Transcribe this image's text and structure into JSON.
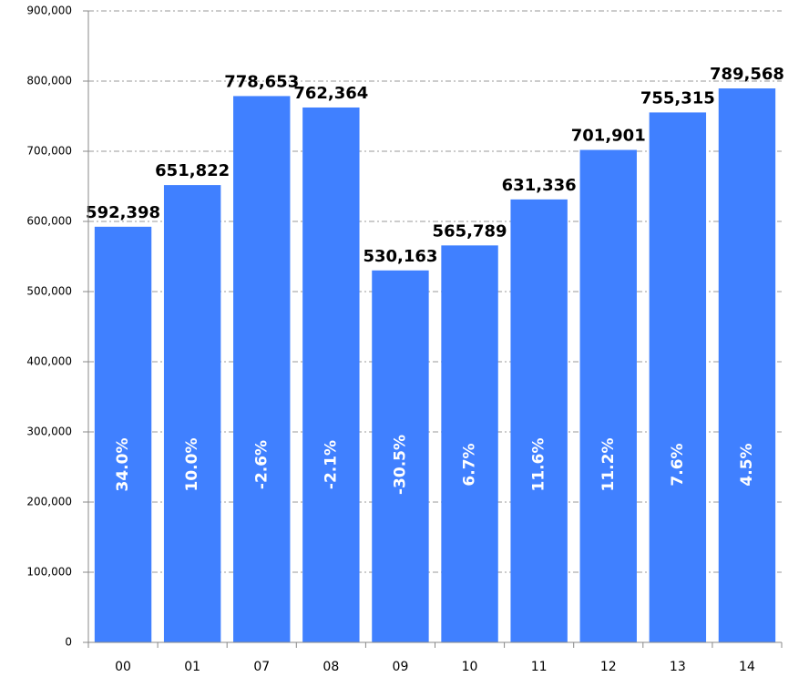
{
  "chart_data": {
    "type": "bar",
    "categories": [
      "00",
      "01",
      "07",
      "08",
      "09",
      "10",
      "11",
      "12",
      "13",
      "14"
    ],
    "values": [
      592398,
      651822,
      778653,
      762364,
      530163,
      565789,
      631336,
      701901,
      755315,
      789568
    ],
    "value_labels": [
      "592,398",
      "651,822",
      "778,653",
      "762,364",
      "530,163",
      "565,789",
      "631,336",
      "701,901",
      "755,315",
      "789,568"
    ],
    "inner_labels": [
      "34.0%",
      "10.0%",
      "-2.6%",
      "-2.1%",
      "-30.5%",
      "6.7%",
      "11.6%",
      "11.2%",
      "7.6%",
      "4.5%"
    ],
    "color": "#4080ff",
    "ylim": [
      0,
      900000
    ],
    "yticks": [
      0,
      {
        "value": 100000,
        "label": "100,000"
      },
      {
        "value": 200000,
        "label": "200,000"
      },
      {
        "value": 300000,
        "label": "300,000"
      },
      {
        "value": 400000,
        "label": "400,000"
      },
      {
        "value": 500000,
        "label": "500,000"
      },
      {
        "value": 600000,
        "label": "600,000"
      },
      {
        "value": 700000,
        "label": "700,000"
      },
      {
        "value": 800000,
        "label": "800,000"
      },
      {
        "value": 900000,
        "label": "900,000"
      }
    ],
    "grid": true
  }
}
